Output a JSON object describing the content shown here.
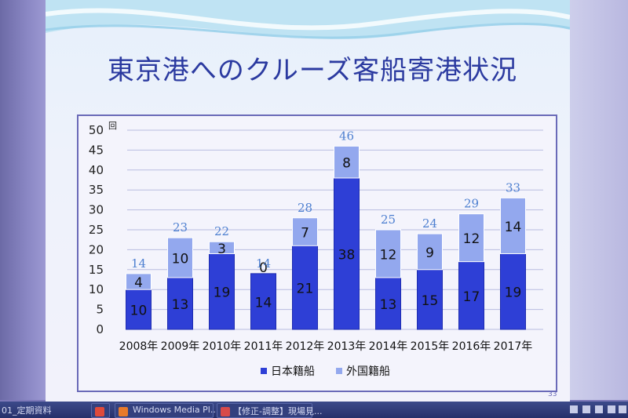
{
  "slide": {
    "title": "東京港へのクルーズ客船寄港状況",
    "page_number": "33"
  },
  "chart_data": {
    "type": "bar",
    "stacked": true,
    "categories": [
      "2008年",
      "2009年",
      "2010年",
      "2011年",
      "2012年",
      "2013年",
      "2014年",
      "2015年",
      "2016年",
      "2017年"
    ],
    "series": [
      {
        "name": "日本籍船",
        "values": [
          10,
          13,
          19,
          14,
          21,
          38,
          13,
          15,
          17,
          19
        ],
        "color": "#2e3fd6"
      },
      {
        "name": "外国籍船",
        "values": [
          4,
          10,
          3,
          0,
          7,
          8,
          12,
          9,
          12,
          14
        ],
        "color": "#93a8ee"
      }
    ],
    "totals": [
      14,
      23,
      22,
      14,
      28,
      46,
      25,
      24,
      29,
      33
    ],
    "ylabel": "回",
    "ylim": [
      0,
      50
    ],
    "yticks": [
      0,
      5,
      10,
      15,
      20,
      25,
      30,
      35,
      40,
      45,
      50
    ],
    "grid": true,
    "legend_position": "bottom"
  },
  "taskbar": {
    "items": [
      {
        "label": "01_定期資料",
        "icon": "folder-icon"
      },
      {
        "label": "",
        "icon": "app-icon"
      },
      {
        "label": "Windows Media Pl...",
        "icon": "media-player-icon"
      },
      {
        "label": "【修正-調整】現場見...",
        "icon": "document-icon"
      }
    ],
    "colors": {
      "bar": "#26306a",
      "text": "#d8dcf4"
    }
  }
}
